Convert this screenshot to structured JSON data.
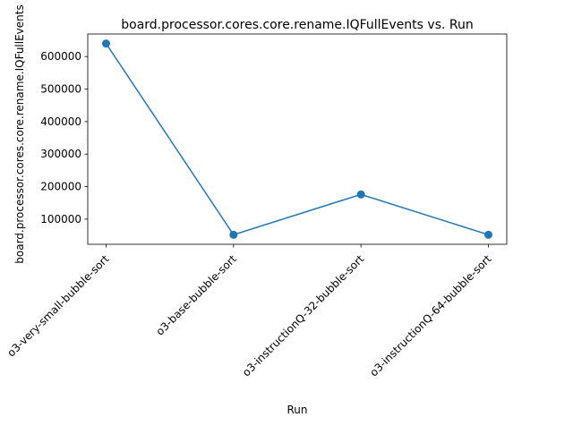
{
  "chart_data": {
    "type": "line",
    "title": "board.processor.cores.core.rename.IQFullEvents vs. Run",
    "xlabel": "Run",
    "ylabel": "board.processor.cores.core.rename.IQFullEvents",
    "categories": [
      "o3-very-small-bubble-sort",
      "o3-base-bubble-sort",
      "o3-instructionQ-32-bubble-sort",
      "o3-instructionQ-64-bubble-sort"
    ],
    "values": [
      640000,
      52000,
      176000,
      52000
    ],
    "ylim": [
      22600,
      669400
    ],
    "yticks": [
      100000,
      200000,
      300000,
      400000,
      500000,
      600000
    ],
    "ytick_labels": [
      "100000",
      "200000",
      "300000",
      "400000",
      "500000",
      "600000"
    ],
    "xtick_rotation_deg": 45,
    "grid": false,
    "legend": "none",
    "color": "#1f77b4",
    "marker": "circle"
  }
}
